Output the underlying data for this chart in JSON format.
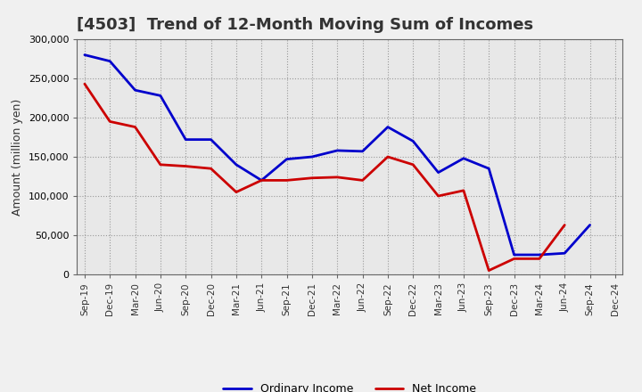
{
  "title": "[4503]  Trend of 12-Month Moving Sum of Incomes",
  "ylabel": "Amount (million yen)",
  "x_labels": [
    "Sep-19",
    "Dec-19",
    "Mar-20",
    "Jun-20",
    "Sep-20",
    "Dec-20",
    "Mar-21",
    "Jun-21",
    "Sep-21",
    "Dec-21",
    "Mar-22",
    "Jun-22",
    "Sep-22",
    "Dec-22",
    "Mar-23",
    "Jun-23",
    "Sep-23",
    "Dec-23",
    "Mar-24",
    "Jun-24",
    "Sep-24",
    "Dec-24"
  ],
  "ordinary_income": [
    280000,
    272000,
    235000,
    228000,
    172000,
    172000,
    140000,
    120000,
    147000,
    150000,
    158000,
    157000,
    188000,
    170000,
    130000,
    148000,
    135000,
    25000,
    25000,
    27000,
    63000,
    null
  ],
  "net_income": [
    243000,
    195000,
    188000,
    140000,
    138000,
    135000,
    105000,
    120000,
    120000,
    123000,
    124000,
    120000,
    150000,
    140000,
    100000,
    107000,
    5000,
    20000,
    20000,
    63000,
    null,
    null
  ],
  "ordinary_color": "#0000cc",
  "net_color": "#cc0000",
  "ylim": [
    0,
    300000
  ],
  "yticks": [
    0,
    50000,
    100000,
    150000,
    200000,
    250000,
    300000
  ],
  "figure_facecolor": "#f0f0f0",
  "axes_facecolor": "#e8e8e8",
  "grid_color": "#999999",
  "title_color": "#333333",
  "title_fontsize": 13,
  "legend_labels": [
    "Ordinary Income",
    "Net Income"
  ]
}
